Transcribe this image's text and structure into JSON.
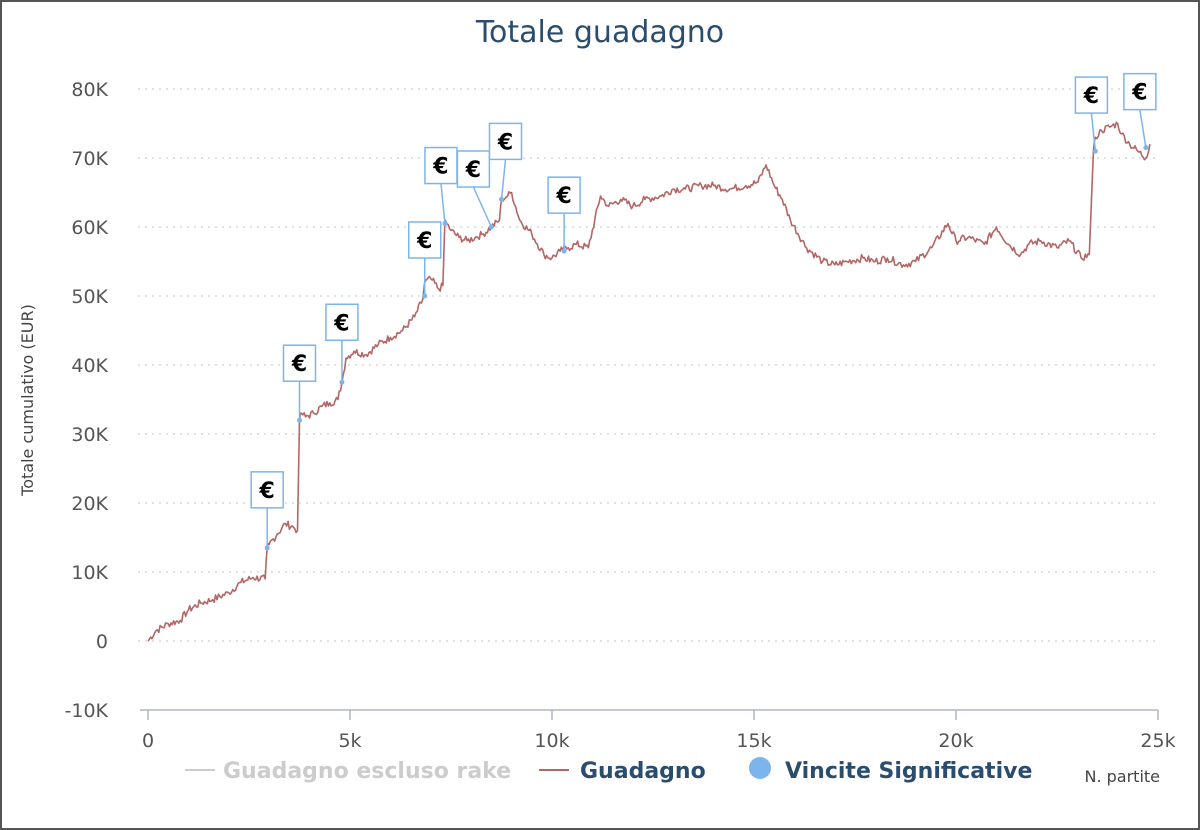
{
  "chart_data": {
    "type": "line",
    "title": "Totale guadagno",
    "xlabel": "N. partite",
    "ylabel": "Totale cumulativo (EUR)",
    "xlim": [
      0,
      25000
    ],
    "ylim": [
      -10000,
      80000
    ],
    "x_ticks": [
      0,
      5000,
      10000,
      15000,
      20000,
      25000
    ],
    "x_tick_labels": [
      "0",
      "5k",
      "10k",
      "15k",
      "20k",
      "25k"
    ],
    "y_ticks": [
      -10000,
      0,
      10000,
      20000,
      30000,
      40000,
      50000,
      60000,
      70000,
      80000
    ],
    "y_tick_labels": [
      "-10K",
      "0",
      "10K",
      "20K",
      "30K",
      "40K",
      "50K",
      "60K",
      "70K",
      "80K"
    ],
    "grid": "horizontal dotted",
    "legend_position": "bottom",
    "colors": {
      "guadagno": "#b36666",
      "escluso_rake": "#cccccc",
      "vincite": "#7cb5ec",
      "title": "#2a4d6e"
    },
    "series": [
      {
        "name": "Guadagno escluso rake",
        "hidden": true,
        "color": "#cccccc",
        "x": [],
        "y": []
      },
      {
        "name": "Guadagno",
        "color": "#b36666",
        "x": [
          0,
          200,
          500,
          800,
          1000,
          1300,
          1600,
          2000,
          2300,
          2600,
          2900,
          2950,
          3000,
          3200,
          3400,
          3600,
          3700,
          3750,
          3800,
          3900,
          4100,
          4300,
          4500,
          4700,
          4800,
          4900,
          5100,
          5400,
          5700,
          6000,
          6300,
          6600,
          6800,
          6850,
          7000,
          7200,
          7300,
          7350,
          7400,
          7500,
          7700,
          7900,
          8100,
          8300,
          8500,
          8700,
          8750,
          8900,
          9000,
          9200,
          9500,
          9800,
          10000,
          10200,
          10400,
          10600,
          10900,
          11200,
          11400,
          11700,
          12000,
          12300,
          12700,
          13000,
          13300,
          13700,
          14000,
          14400,
          14800,
          15100,
          15300,
          15500,
          15700,
          15900,
          16300,
          16700,
          17000,
          17300,
          17700,
          18000,
          18300,
          18700,
          19000,
          19400,
          19800,
          20000,
          20300,
          20700,
          21000,
          21300,
          21600,
          21800,
          22100,
          22500,
          22800,
          23100,
          23300,
          23400,
          23450,
          23600,
          23800,
          24000,
          24100,
          24300,
          24500,
          24700,
          24800
        ],
        "y": [
          0,
          1500,
          2500,
          3000,
          4500,
          5500,
          6000,
          7000,
          8500,
          9200,
          9000,
          13500,
          14000,
          15500,
          17000,
          16500,
          16000,
          32000,
          33000,
          32500,
          33000,
          34000,
          34500,
          35000,
          37500,
          41000,
          42000,
          41500,
          43000,
          44000,
          45000,
          47000,
          49500,
          52000,
          52500,
          51000,
          51500,
          61000,
          60500,
          59500,
          58500,
          58000,
          58500,
          59000,
          60000,
          61000,
          64000,
          64500,
          65000,
          61000,
          59000,
          56000,
          55500,
          56500,
          57000,
          57500,
          57000,
          64500,
          63000,
          64000,
          63000,
          64000,
          64500,
          65500,
          65500,
          66000,
          66000,
          65500,
          66000,
          66500,
          69000,
          66000,
          64000,
          61000,
          57000,
          55000,
          54500,
          55000,
          55500,
          55000,
          55500,
          54500,
          55000,
          57000,
          60500,
          58000,
          58500,
          57500,
          60000,
          57500,
          56000,
          57500,
          58000,
          57000,
          58000,
          55500,
          56000,
          71000,
          73000,
          74000,
          74500,
          75000,
          73500,
          72000,
          71000,
          70000,
          72000
        ]
      },
      {
        "name": "Vincite Significative",
        "color": "#7cb5ec",
        "marker_label": "€",
        "x": [
          2950,
          3750,
          4800,
          6850,
          7350,
          8500,
          8750,
          10300,
          23450,
          24700
        ],
        "y": [
          13500,
          32000,
          37500,
          50000,
          60500,
          60000,
          64000,
          56500,
          71000,
          71500
        ]
      }
    ]
  }
}
